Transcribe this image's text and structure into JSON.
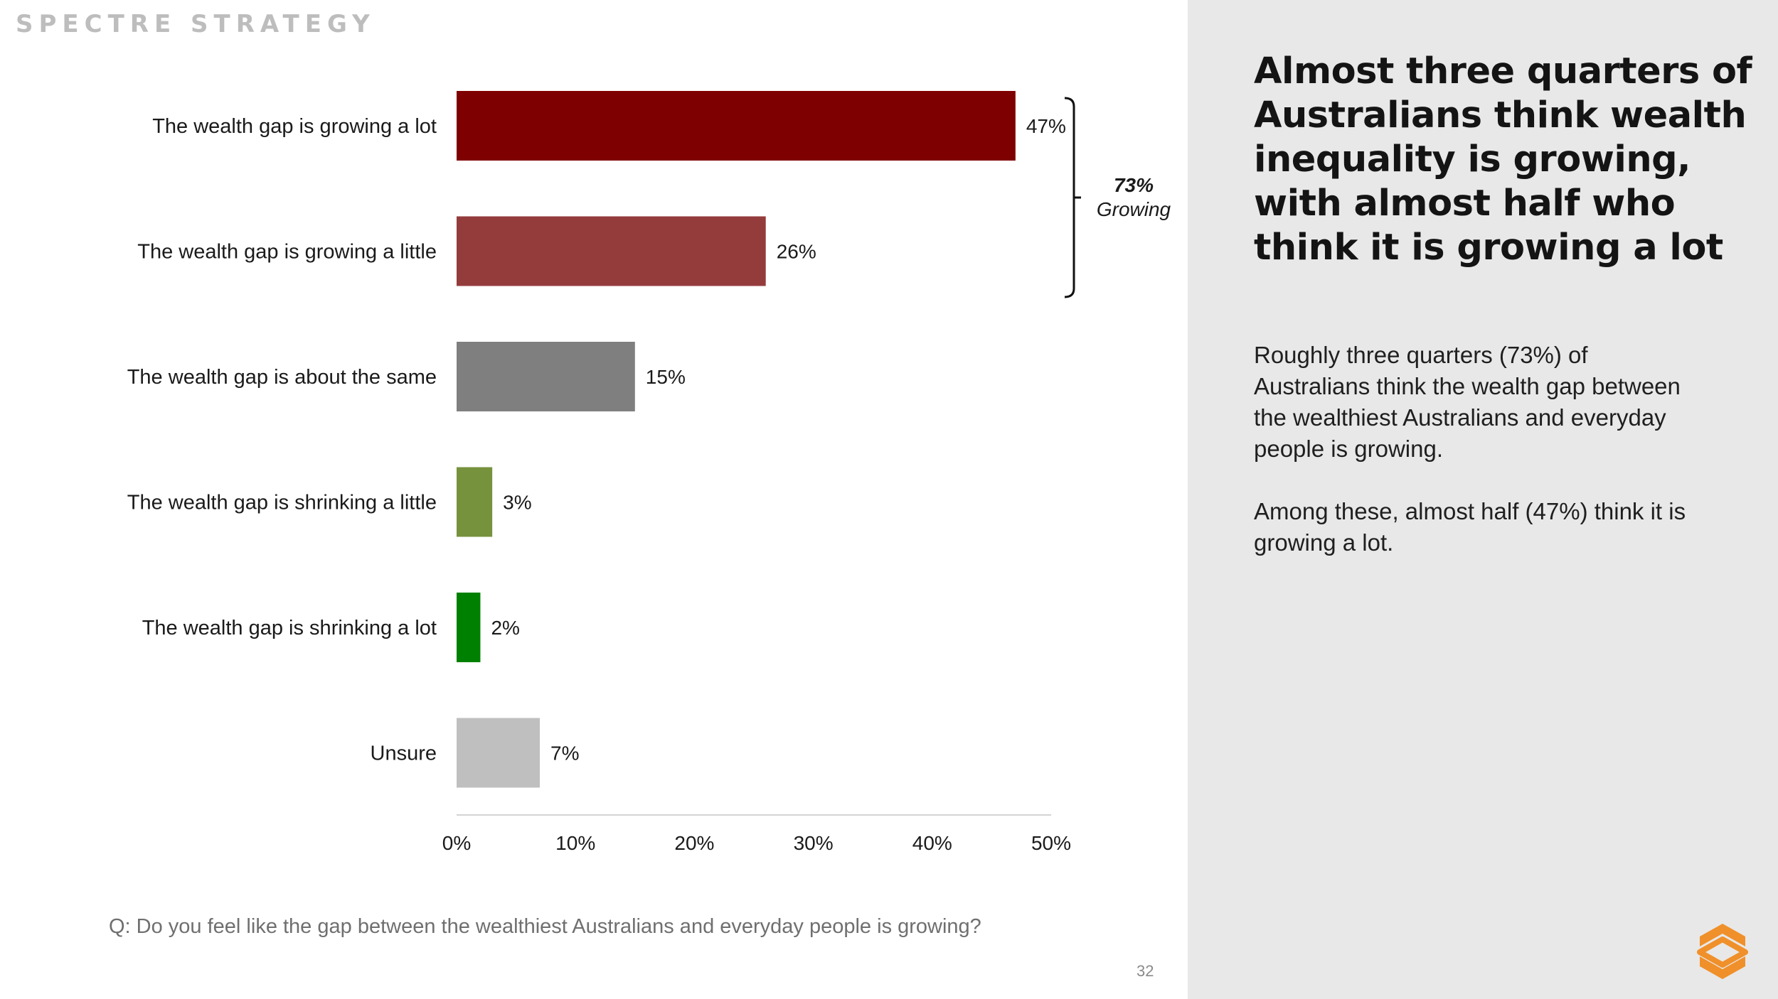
{
  "brand": "SPECTRE STRATEGY",
  "chart_data": {
    "type": "bar",
    "orientation": "horizontal",
    "categories": [
      "The wealth gap is growing a lot",
      "The wealth gap is growing a little",
      "The wealth gap is about the same",
      "The wealth gap is shrinking a little",
      "The wealth gap is shrinking a lot",
      "Unsure"
    ],
    "values": [
      47,
      26,
      15,
      3,
      2,
      7
    ],
    "value_labels": [
      "47%",
      "26%",
      "15%",
      "3%",
      "2%",
      "7%"
    ],
    "colors": [
      "#7f0000",
      "#943c3c",
      "#7f7f7f",
      "#76923c",
      "#008000",
      "#bfbfbf"
    ],
    "xlim": [
      0,
      50
    ],
    "xticks": [
      0,
      10,
      20,
      30,
      40,
      50
    ],
    "xtick_labels": [
      "0%",
      "10%",
      "20%",
      "30%",
      "40%",
      "50%"
    ],
    "grid": false,
    "annotation": {
      "value": "73%",
      "label": "Growing",
      "spans": [
        "The wealth gap is growing a lot",
        "The wealth gap is growing a little"
      ]
    }
  },
  "question": "Q: Do you feel like the gap between the wealthiest Australians and everyday people is growing?",
  "page_number": "32",
  "side_panel": {
    "headline": "Almost three quarters of Australians think wealth inequality is growing, with almost half who think it is growing a lot",
    "paragraphs": [
      "Roughly three quarters (73%) of Australians think the wealth gap between the wealthiest Australians and everyday people is growing.",
      "Among these, almost half (47%) think it is growing a lot."
    ]
  },
  "logo_icon": "spectre-logo-icon",
  "accent_color": "#f0902a"
}
